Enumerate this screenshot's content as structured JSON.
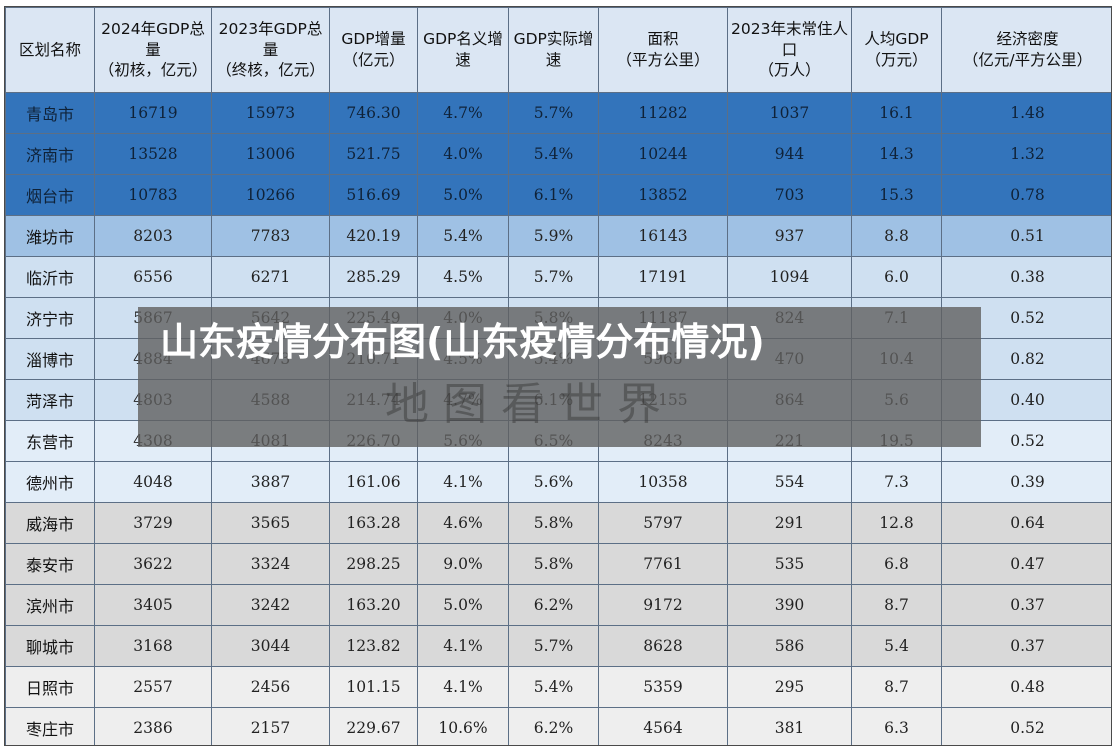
{
  "table": {
    "headers": [
      "区划名称",
      "2024年GDP总量（初核，亿元）",
      "2023年GDP总量（终核，亿元）",
      "GDP增量（亿元）",
      "GDP名义增速",
      "GDP实际增速",
      "面积（平方公里）",
      "2023年末常住人口（万人）",
      "人均GDP（万元）",
      "经济密度（亿元/平方公里）"
    ],
    "rows": [
      {
        "cells": [
          "青岛市",
          "16719",
          "15973",
          "746.30",
          "4.7%",
          "5.7%",
          "11282",
          "1037",
          "16.1",
          "1.48"
        ],
        "tier": "t1"
      },
      {
        "cells": [
          "济南市",
          "13528",
          "13006",
          "521.75",
          "4.0%",
          "5.4%",
          "10244",
          "944",
          "14.3",
          "1.32"
        ],
        "tier": "t1"
      },
      {
        "cells": [
          "烟台市",
          "10783",
          "10266",
          "516.69",
          "5.0%",
          "6.1%",
          "13852",
          "703",
          "15.3",
          "0.78"
        ],
        "tier": "t1"
      },
      {
        "cells": [
          "潍坊市",
          "8203",
          "7783",
          "420.19",
          "5.4%",
          "5.9%",
          "16143",
          "937",
          "8.8",
          "0.51"
        ],
        "tier": "t2"
      },
      {
        "cells": [
          "临沂市",
          "6556",
          "6271",
          "285.29",
          "4.5%",
          "5.7%",
          "17191",
          "1094",
          "6.0",
          "0.38"
        ],
        "tier": "t3"
      },
      {
        "cells": [
          "济宁市",
          "5867",
          "5642",
          "225.49",
          "4.0%",
          "5.8%",
          "11187",
          "824",
          "7.1",
          "0.52"
        ],
        "tier": "t3"
      },
      {
        "cells": [
          "淄博市",
          "4884",
          "4673",
          "210.71",
          "4.5%",
          "5.4%",
          "5965",
          "470",
          "10.4",
          "0.82"
        ],
        "tier": "t3"
      },
      {
        "cells": [
          "菏泽市",
          "4803",
          "4588",
          "214.74",
          "4.7%",
          "6.1%",
          "12155",
          "864",
          "5.6",
          "0.40"
        ],
        "tier": "t3"
      },
      {
        "cells": [
          "东营市",
          "4308",
          "4081",
          "226.70",
          "5.6%",
          "6.5%",
          "8243",
          "221",
          "19.5",
          "0.52"
        ],
        "tier": "t4"
      },
      {
        "cells": [
          "德州市",
          "4048",
          "3887",
          "161.06",
          "4.1%",
          "5.6%",
          "10358",
          "554",
          "7.3",
          "0.39"
        ],
        "tier": "t4"
      },
      {
        "cells": [
          "威海市",
          "3729",
          "3565",
          "163.28",
          "4.6%",
          "5.8%",
          "5797",
          "291",
          "12.8",
          "0.64"
        ],
        "tier": "t5"
      },
      {
        "cells": [
          "泰安市",
          "3622",
          "3324",
          "298.25",
          "9.0%",
          "5.8%",
          "7761",
          "535",
          "6.8",
          "0.47"
        ],
        "tier": "t5"
      },
      {
        "cells": [
          "滨州市",
          "3405",
          "3242",
          "163.20",
          "5.0%",
          "6.2%",
          "9172",
          "390",
          "8.7",
          "0.37"
        ],
        "tier": "t5"
      },
      {
        "cells": [
          "聊城市",
          "3168",
          "3044",
          "123.82",
          "4.1%",
          "5.7%",
          "8628",
          "586",
          "5.4",
          "0.37"
        ],
        "tier": "t5"
      },
      {
        "cells": [
          "日照市",
          "2557",
          "2456",
          "101.15",
          "4.1%",
          "5.4%",
          "5359",
          "295",
          "8.7",
          "0.48"
        ],
        "tier": "t6"
      },
      {
        "cells": [
          "枣庄市",
          "2386",
          "2157",
          "229.67",
          "10.6%",
          "6.2%",
          "4564",
          "381",
          "6.3",
          "0.52"
        ],
        "tier": "t6"
      }
    ]
  },
  "overlay": {
    "headline": "山东疫情分布图(山东疫情分布情况)",
    "watermark": "地图看世界"
  }
}
